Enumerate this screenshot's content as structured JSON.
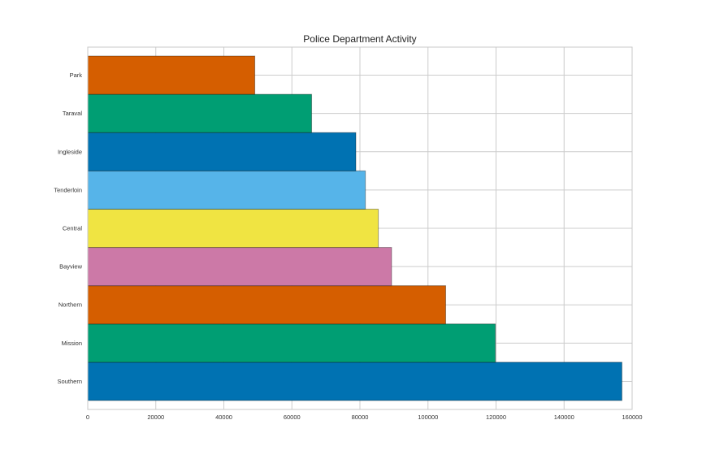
{
  "chart_data": {
    "type": "bar",
    "orientation": "horizontal",
    "title": "Police Department Activity",
    "xlabel": "",
    "ylabel": "",
    "grid": true,
    "xlim": [
      0,
      160000
    ],
    "x_ticks": [
      "0",
      "20000",
      "40000",
      "60000",
      "80000",
      "100000",
      "120000",
      "140000",
      "160000"
    ],
    "categories": [
      "Southern",
      "Mission",
      "Northern",
      "Bayview",
      "Central",
      "Tenderloin",
      "Ingleside",
      "Taraval",
      "Park"
    ],
    "values": [
      157000,
      119800,
      105200,
      89300,
      85400,
      81600,
      78800,
      65800,
      49100
    ],
    "colors": [
      "#0072b2",
      "#009e73",
      "#d55e00",
      "#cc79a7",
      "#f0e442",
      "#56b4e9",
      "#0072b2",
      "#009e73",
      "#d55e00"
    ]
  }
}
